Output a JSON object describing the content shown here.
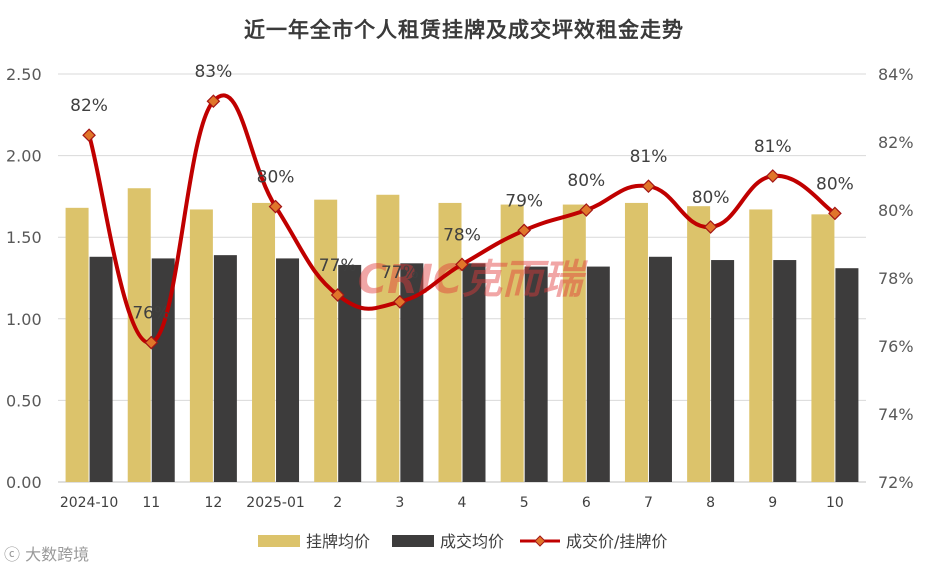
{
  "chart_data": {
    "type": "bar",
    "title": "近一年全市个人租赁挂牌及成交坪效租金走势",
    "categories": [
      "2024-10",
      "11",
      "12",
      "2025-01",
      "2",
      "3",
      "4",
      "5",
      "6",
      "7",
      "8",
      "9",
      "10"
    ],
    "series": [
      {
        "name": "挂牌均价",
        "type": "bar",
        "axis": "left",
        "color": "#dcc36b",
        "values": [
          1.68,
          1.8,
          1.67,
          1.71,
          1.73,
          1.76,
          1.71,
          1.7,
          1.7,
          1.71,
          1.69,
          1.67,
          1.64
        ]
      },
      {
        "name": "成交均价",
        "type": "bar",
        "axis": "left",
        "color": "#3d3c3c",
        "values": [
          1.38,
          1.37,
          1.39,
          1.37,
          1.33,
          1.34,
          1.34,
          1.32,
          1.32,
          1.38,
          1.36,
          1.36,
          1.31
        ]
      },
      {
        "name": "成交价/挂牌价",
        "type": "line",
        "axis": "right",
        "color": "#c00000",
        "marker_color": "#e0762a",
        "values": [
          82.2,
          76.1,
          83.2,
          80.1,
          77.5,
          77.3,
          78.4,
          79.4,
          80.0,
          80.7,
          79.5,
          81.0,
          79.9
        ],
        "labels": [
          "82%",
          "76%",
          "83%",
          "80%",
          "77%",
          "77%",
          "78%",
          "79%",
          "80%",
          "81%",
          "80%",
          "81%",
          "80%"
        ]
      }
    ],
    "y_left": {
      "lim": [
        0,
        2.5
      ],
      "ticks": [
        "0.00",
        "0.50",
        "1.00",
        "1.50",
        "2.00",
        "2.50"
      ]
    },
    "y_right": {
      "lim": [
        72,
        84
      ],
      "ticks": [
        "72%",
        "74%",
        "76%",
        "78%",
        "80%",
        "82%",
        "84%"
      ]
    },
    "grid": true,
    "legend": "bottom"
  },
  "watermark": {
    "center_text": "CRIC克而瑞",
    "corner_text": "大数跨境"
  }
}
